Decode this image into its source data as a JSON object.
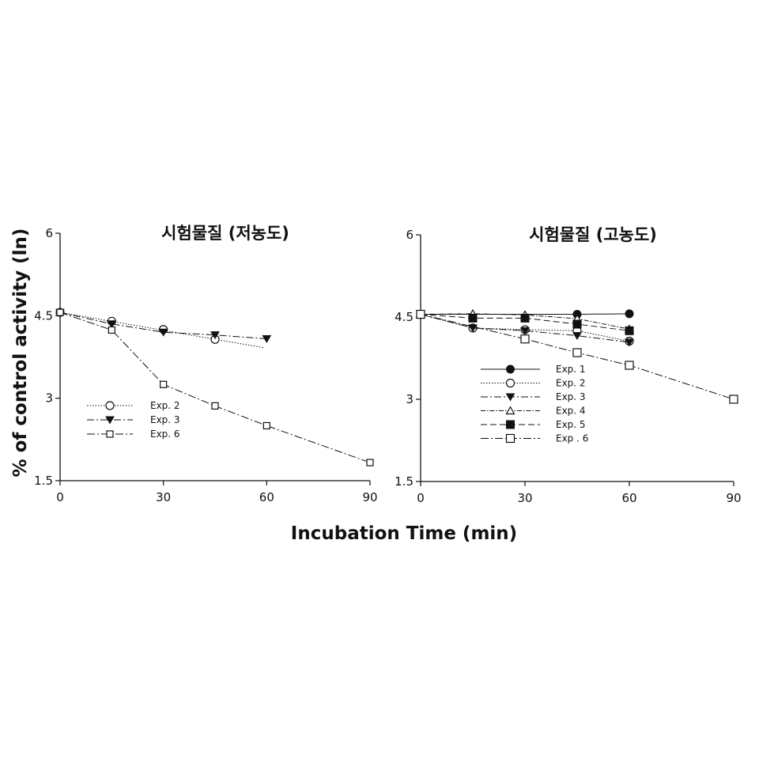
{
  "figure": {
    "ylabel": "% of control activity (ln)",
    "xlabel": "Incubation Time (min)"
  },
  "chart_data": [
    {
      "type": "line",
      "title": "시험물질 (저농도)",
      "xlabel": "Incubation Time (min)",
      "ylabel": "% of control activity (ln)",
      "xlim": [
        0,
        90
      ],
      "ylim": [
        1.5,
        6
      ],
      "xticks": [
        "0",
        "30",
        "60",
        "90"
      ],
      "yticks": [
        "1.5",
        "3",
        "4.5",
        "6"
      ],
      "legend_position": "lower-left",
      "series": [
        {
          "name": "Exp. 2",
          "marker": "circle-open",
          "dash": "1.5 2",
          "marker_size": "large",
          "x": [
            0,
            15,
            30,
            45
          ],
          "y": [
            4.56,
            4.4,
            4.25,
            4.07
          ],
          "trend": {
            "x": [
              0,
              59
            ],
            "y": [
              4.56,
              3.92
            ]
          }
        },
        {
          "name": "Exp. 3",
          "marker": "triangle-down-filled",
          "dash": "9 3 2 3",
          "marker_size": "large",
          "x": [
            0,
            15,
            30,
            45,
            60
          ],
          "y": [
            4.56,
            4.35,
            4.2,
            4.15,
            4.08
          ]
        },
        {
          "name": "Exp. 6",
          "marker": "square-open",
          "dash": "10 3 2 3",
          "marker_size": "small",
          "x": [
            0,
            15,
            30,
            45,
            60,
            90
          ],
          "y": [
            4.56,
            4.24,
            3.25,
            2.86,
            2.5,
            1.83
          ]
        }
      ]
    },
    {
      "type": "line",
      "title": "시험물질 (고농도)",
      "xlabel": "Incubation Time (min)",
      "ylabel": "% of control activity (ln)",
      "xlim": [
        0,
        90
      ],
      "ylim": [
        1.5,
        6
      ],
      "xticks": [
        "0",
        "30",
        "60",
        "90"
      ],
      "yticks": [
        "1.5",
        "3",
        "4.5",
        "6"
      ],
      "legend_position": "center-left",
      "series": [
        {
          "name": "Exp. 1",
          "marker": "circle-filled",
          "dash": "",
          "marker_size": "large",
          "x": [
            0,
            45,
            60
          ],
          "y": [
            4.55,
            4.55,
            4.56
          ]
        },
        {
          "name": "Exp. 2",
          "marker": "circle-open",
          "dash": "1.5 2",
          "marker_size": "large",
          "x": [
            0,
            15,
            30,
            45,
            60
          ],
          "y": [
            4.55,
            4.3,
            4.27,
            4.25,
            4.06
          ]
        },
        {
          "name": "Exp. 3",
          "marker": "triangle-down-filled",
          "dash": "9 3 2 3",
          "marker_size": "large",
          "x": [
            0,
            15,
            30,
            45,
            60
          ],
          "y": [
            4.55,
            4.3,
            4.25,
            4.16,
            4.04
          ]
        },
        {
          "name": "Exp. 4",
          "marker": "triangle-up-open",
          "dash": "6 2 1.5 2",
          "marker_size": "large",
          "x": [
            0,
            15,
            30,
            45,
            60
          ],
          "y": [
            4.55,
            4.56,
            4.54,
            4.47,
            4.28
          ]
        },
        {
          "name": "Exp. 5",
          "marker": "square-filled",
          "dash": "8 4",
          "marker_size": "large",
          "x": [
            0,
            15,
            30,
            45,
            60
          ],
          "y": [
            4.55,
            4.48,
            4.48,
            4.37,
            4.25
          ]
        },
        {
          "name": "Exp . 6",
          "marker": "square-open",
          "dash": "10 3 2 3",
          "marker_size": "large",
          "x": [
            0,
            30,
            45,
            60,
            90
          ],
          "y": [
            4.55,
            4.1,
            3.85,
            3.62,
            3.0
          ]
        }
      ]
    }
  ],
  "colors": {
    "line": "#111111",
    "background": "#ffffff"
  }
}
